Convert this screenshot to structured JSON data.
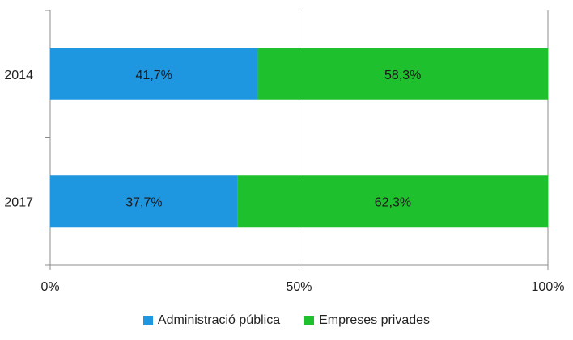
{
  "chart_data": {
    "type": "bar",
    "orientation": "horizontal",
    "stacked": "percent",
    "categories": [
      "2014",
      "2017"
    ],
    "series": [
      {
        "name": "Administració pública",
        "values": [
          41.7,
          37.7
        ],
        "labels": [
          "41,7%",
          "37,7%"
        ],
        "color": "#1e96e0"
      },
      {
        "name": "Empreses privades",
        "values": [
          58.3,
          62.3
        ],
        "labels": [
          "58,3%",
          "62,3%"
        ],
        "color": "#1ec02d"
      }
    ],
    "xlim": [
      0,
      100
    ],
    "xticks": [
      {
        "value": 0,
        "label": "0%"
      },
      {
        "value": 50,
        "label": "50%"
      },
      {
        "value": 100,
        "label": "100%"
      }
    ],
    "grid": true,
    "legend_position": "bottom"
  }
}
